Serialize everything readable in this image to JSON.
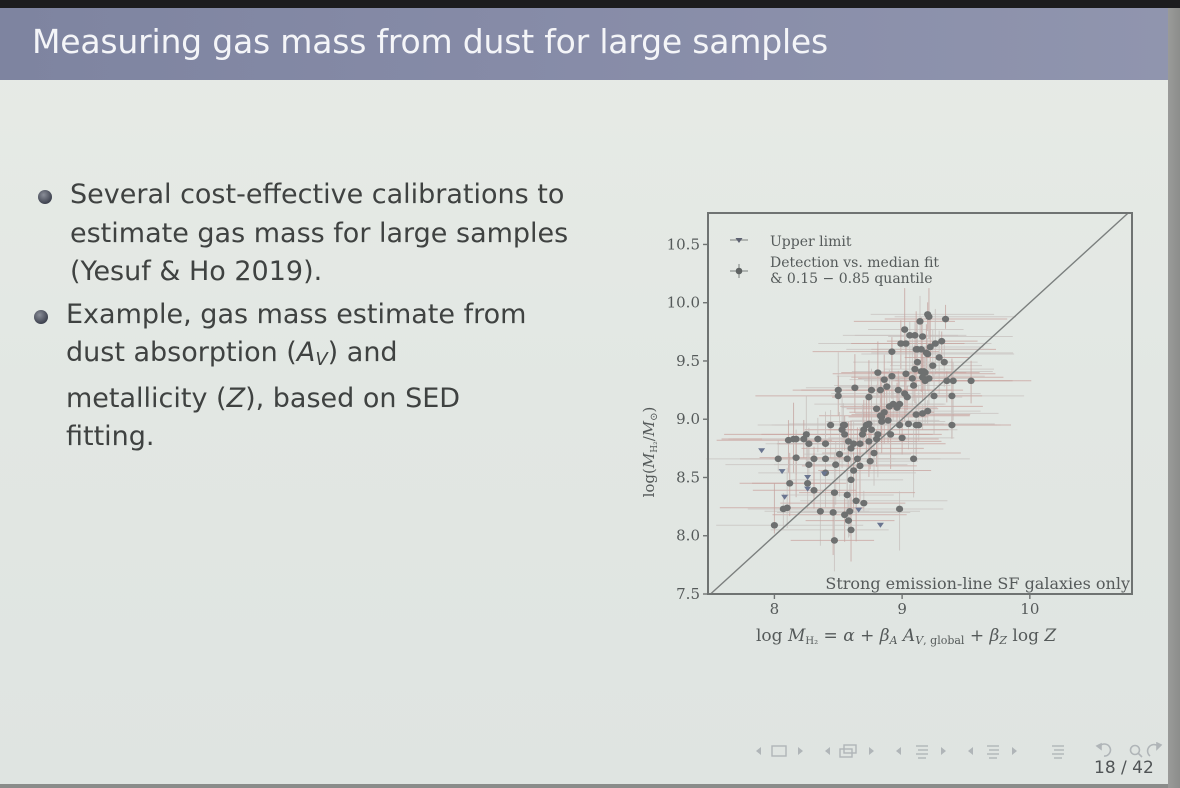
{
  "slide": {
    "title": "Measuring gas mass from dust for large samples",
    "bullets": [
      {
        "lines": [
          "Several cost-effective calibrations to",
          "estimate gas mass for large samples",
          "(Yesuf & Ho 2019)."
        ]
      },
      {
        "lines": [
          "Example, gas mass estimate from",
          "dust absorption (",
          "A",
          "V",
          ") and",
          "metallicity (",
          "Z",
          "), based on SED",
          "fitting."
        ]
      }
    ],
    "page_indicator": "18 / 42",
    "nav_icons": [
      "frame-prev-icon",
      "frame-icon",
      "frame-next-icon",
      "subsection-prev-icon",
      "subsection-icon",
      "subsection-next-icon",
      "section-prev-icon",
      "section-icon",
      "section-next-icon",
      "subsection2-prev-icon",
      "subsection2-icon",
      "subsection2-next-icon",
      "document-icon",
      "back-icon",
      "search-icon",
      "forward-icon"
    ]
  },
  "chart_data": {
    "type": "scatter",
    "title": "",
    "xlabel": "log M_H2 = α + β_A A_V,global + β_Z log Z",
    "ylabel": "log(M_H2/M_⊙)",
    "xlim": [
      7.48,
      10.8
    ],
    "ylim": [
      7.5,
      10.77
    ],
    "x_ticks": [
      "8",
      "9",
      "10"
    ],
    "y_ticks": [
      "7.5",
      "8.0",
      "8.5",
      "9.0",
      "9.5",
      "10.0",
      "10.5"
    ],
    "grid": false,
    "legend_position": "upper left",
    "legend": [
      {
        "marker": "triangle-down",
        "label": "Upper limit"
      },
      {
        "marker": "circle",
        "label": "Detection vs. median fit & 0.15 − 0.85 quantile"
      }
    ],
    "annotation": "Strong emission-line SF galaxies only",
    "reference_line": "one-to-one (y = x)",
    "colors": {
      "points": "#6e7070",
      "xerr": "#c9a49f",
      "yerr": "#c4a29e",
      "upper_limit": "#6a7590",
      "line": "#7b7f7e",
      "frame": "#6f7372"
    },
    "series": [
      {
        "name": "Detection",
        "points": [
          [
            9.2,
            9.9
          ],
          [
            9.21,
            9.88
          ],
          [
            9.14,
            9.84
          ],
          [
            9.34,
            9.86
          ],
          [
            9.02,
            9.77
          ],
          [
            9.06,
            9.72
          ],
          [
            9.1,
            9.72
          ],
          [
            9.16,
            9.71
          ],
          [
            9.26,
            9.65
          ],
          [
            9.31,
            9.67
          ],
          [
            8.99,
            9.65
          ],
          [
            9.03,
            9.65
          ],
          [
            9.11,
            9.6
          ],
          [
            9.12,
            9.6
          ],
          [
            9.15,
            9.6
          ],
          [
            9.22,
            9.62
          ],
          [
            9.19,
            9.57
          ],
          [
            8.92,
            9.58
          ],
          [
            9.2,
            9.56
          ],
          [
            9.29,
            9.53
          ],
          [
            9.33,
            9.49
          ],
          [
            9.24,
            9.46
          ],
          [
            9.12,
            9.49
          ],
          [
            9.1,
            9.43
          ],
          [
            9.15,
            9.41
          ],
          [
            9.17,
            9.41
          ],
          [
            9.18,
            9.4
          ],
          [
            8.81,
            9.4
          ],
          [
            8.92,
            9.37
          ],
          [
            9.03,
            9.39
          ],
          [
            9.08,
            9.35
          ],
          [
            9.16,
            9.36
          ],
          [
            9.18,
            9.33
          ],
          [
            9.21,
            9.35
          ],
          [
            9.35,
            9.33
          ],
          [
            9.4,
            9.33
          ],
          [
            9.54,
            9.33
          ],
          [
            8.86,
            9.34
          ],
          [
            8.88,
            9.28
          ],
          [
            9.09,
            9.29
          ],
          [
            8.5,
            9.25
          ],
          [
            8.63,
            9.27
          ],
          [
            8.76,
            9.25
          ],
          [
            8.83,
            9.25
          ],
          [
            8.97,
            9.25
          ],
          [
            9.02,
            9.22
          ],
          [
            8.5,
            9.2
          ],
          [
            8.74,
            9.19
          ],
          [
            9.04,
            9.19
          ],
          [
            9.25,
            9.2
          ],
          [
            8.93,
            9.13
          ],
          [
            8.9,
            9.11
          ],
          [
            8.96,
            9.1
          ],
          [
            8.98,
            9.13
          ],
          [
            8.8,
            9.09
          ],
          [
            8.86,
            9.06
          ],
          [
            9.39,
            9.2
          ],
          [
            8.83,
            9.03
          ],
          [
            9.11,
            9.04
          ],
          [
            9.16,
            9.05
          ],
          [
            8.84,
            9.02
          ],
          [
            9.2,
            9.07
          ],
          [
            8.89,
            8.99
          ],
          [
            8.84,
            8.98
          ],
          [
            8.98,
            8.95
          ],
          [
            9.05,
            8.96
          ],
          [
            8.44,
            8.95
          ],
          [
            8.54,
            8.95
          ],
          [
            8.55,
            8.95
          ],
          [
            9.11,
            8.95
          ],
          [
            9.13,
            8.95
          ],
          [
            8.74,
            8.96
          ],
          [
            8.72,
            8.95
          ],
          [
            9.39,
            8.95
          ],
          [
            8.7,
            8.91
          ],
          [
            8.76,
            8.91
          ],
          [
            8.53,
            8.91
          ],
          [
            8.81,
            8.87
          ],
          [
            8.69,
            8.87
          ],
          [
            8.8,
            8.83
          ],
          [
            8.25,
            8.87
          ],
          [
            8.91,
            8.87
          ],
          [
            8.55,
            8.87
          ],
          [
            9.0,
            8.84
          ],
          [
            8.23,
            8.83
          ],
          [
            8.11,
            8.82
          ],
          [
            8.15,
            8.83
          ],
          [
            8.17,
            8.83
          ],
          [
            8.34,
            8.83
          ],
          [
            8.27,
            8.79
          ],
          [
            8.4,
            8.79
          ],
          [
            8.58,
            8.81
          ],
          [
            8.62,
            8.79
          ],
          [
            8.67,
            8.79
          ],
          [
            8.74,
            8.81
          ],
          [
            8.6,
            8.75
          ],
          [
            8.78,
            8.71
          ],
          [
            8.51,
            8.7
          ],
          [
            8.57,
            8.66
          ],
          [
            8.31,
            8.66
          ],
          [
            8.4,
            8.66
          ],
          [
            8.65,
            8.66
          ],
          [
            8.17,
            8.67
          ],
          [
            8.03,
            8.66
          ],
          [
            8.75,
            8.64
          ],
          [
            9.09,
            8.66
          ],
          [
            8.27,
            8.61
          ],
          [
            8.48,
            8.61
          ],
          [
            8.67,
            8.6
          ],
          [
            8.62,
            8.56
          ],
          [
            8.4,
            8.54
          ],
          [
            8.6,
            8.48
          ],
          [
            8.12,
            8.45
          ],
          [
            8.26,
            8.45
          ],
          [
            8.31,
            8.39
          ],
          [
            8.47,
            8.37
          ],
          [
            8.57,
            8.35
          ],
          [
            8.64,
            8.3
          ],
          [
            8.7,
            8.28
          ],
          [
            8.36,
            8.21
          ],
          [
            8.59,
            8.21
          ],
          [
            8.55,
            8.18
          ],
          [
            8.58,
            8.13
          ],
          [
            8.98,
            8.23
          ],
          [
            8.46,
            8.2
          ],
          [
            8.6,
            8.05
          ],
          [
            8.1,
            8.24
          ],
          [
            8.07,
            8.23
          ],
          [
            8.0,
            8.09
          ],
          [
            8.47,
            7.96
          ]
        ]
      },
      {
        "name": "Upper limit",
        "points": [
          [
            7.9,
            8.73
          ],
          [
            8.06,
            8.55
          ],
          [
            8.26,
            8.5
          ],
          [
            8.39,
            8.53
          ],
          [
            8.08,
            8.33
          ],
          [
            8.26,
            8.4
          ],
          [
            8.66,
            8.22
          ],
          [
            8.83,
            8.09
          ]
        ]
      }
    ]
  }
}
